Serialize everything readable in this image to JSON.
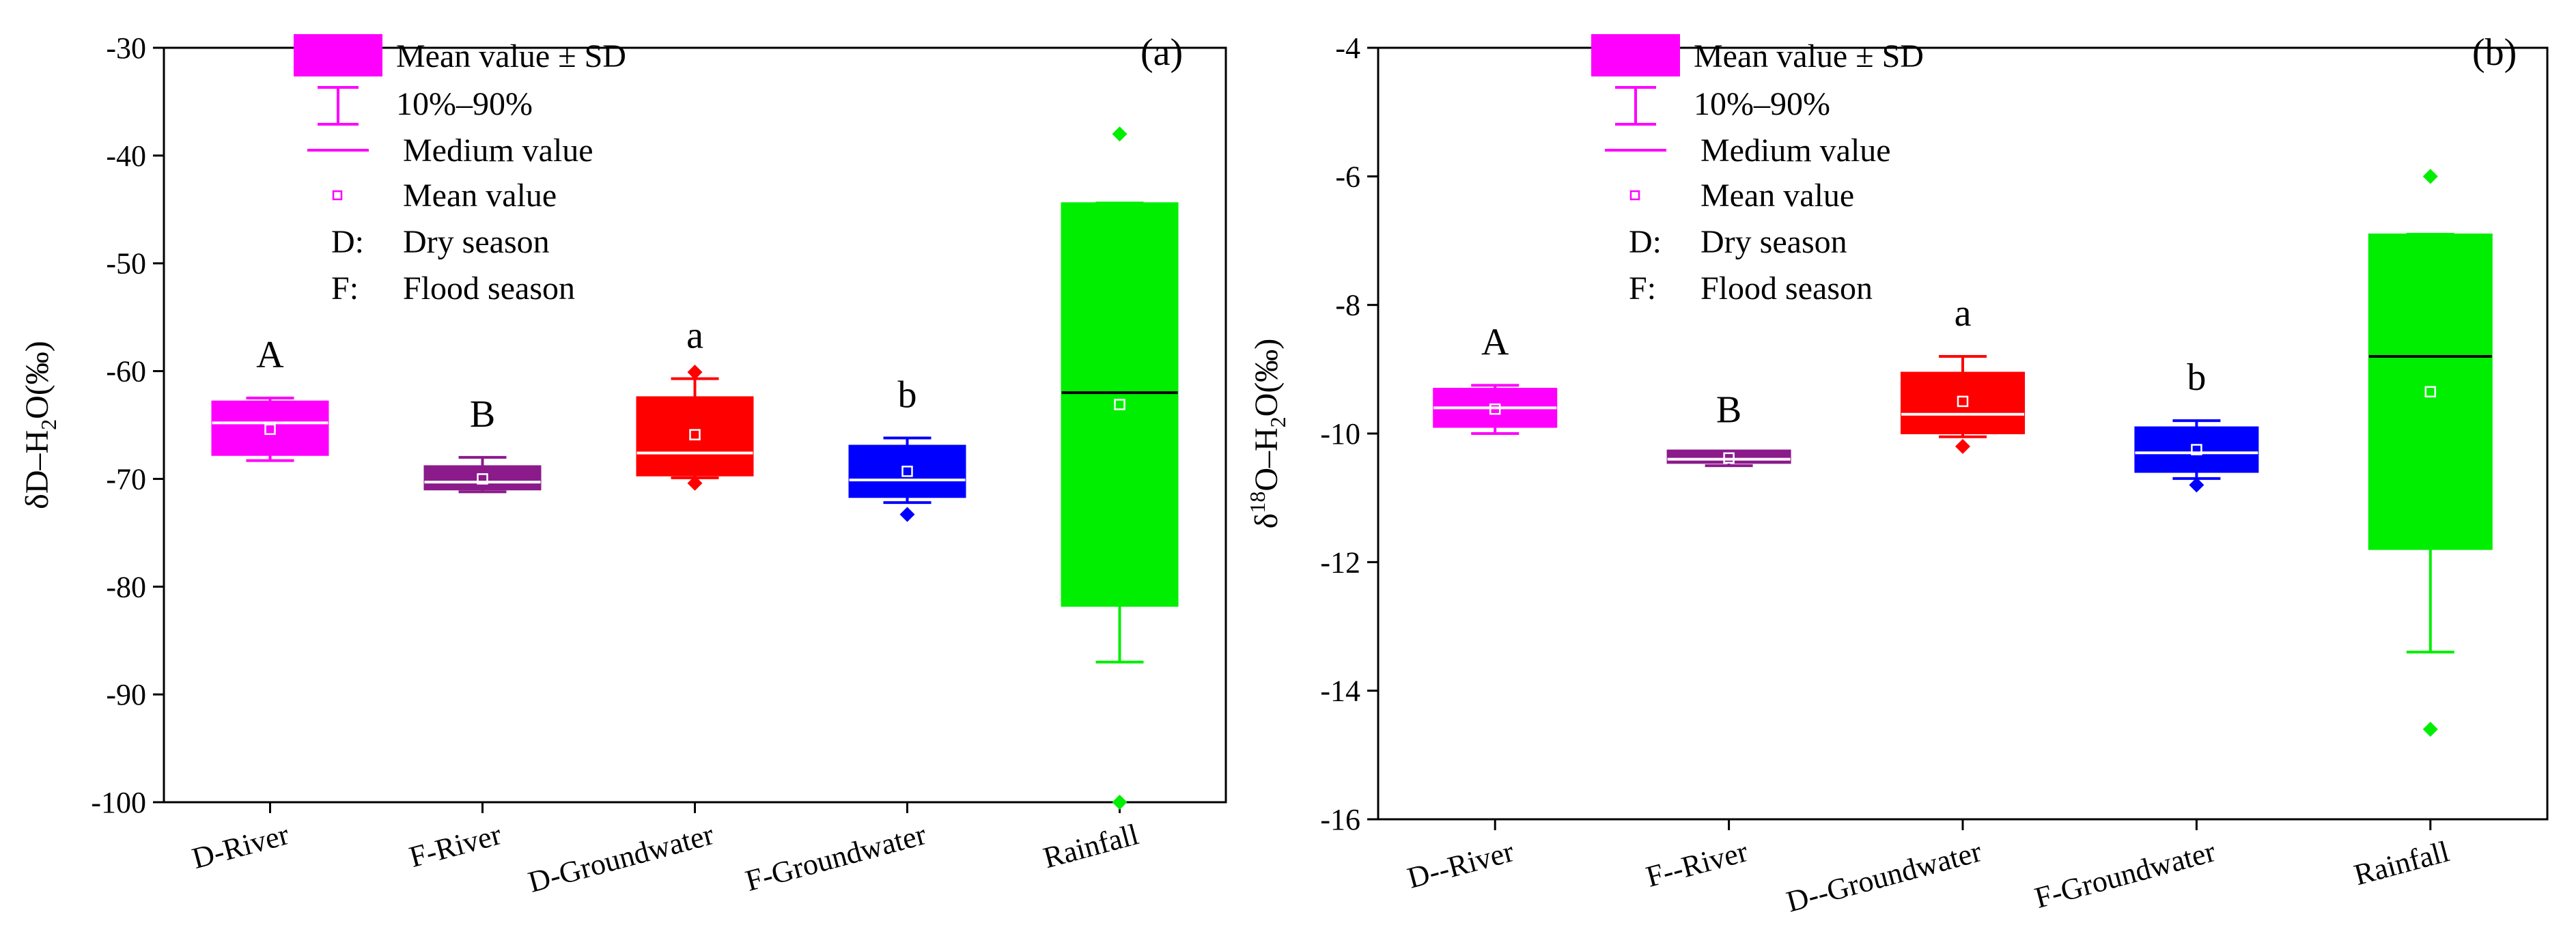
{
  "chart_data": [
    {
      "panel_label": "(a)",
      "type": "box",
      "ylabel": {
        "main": "δD–H",
        "sub": "2",
        "rest": "O(‰)"
      },
      "ylim": [
        -100,
        -30
      ],
      "yticks": [
        -30,
        -40,
        -50,
        -60,
        -70,
        -80,
        -90,
        -100
      ],
      "ytick_labels": [
        "-30",
        "-40",
        "-50",
        "-60",
        "-70",
        "-80",
        "-90",
        "-100"
      ],
      "categories": [
        "D-River",
        "F-River",
        "D-Groundwater",
        "F-Groundwater",
        "Rainfall"
      ],
      "boxes": [
        {
          "color": "#ff00ff",
          "box_low": -67.8,
          "box_high": -62.8,
          "median": -64.8,
          "mean": -65.4,
          "whisker_low": -68.3,
          "whisker_high": -62.5,
          "outliers": [],
          "sig": "A"
        },
        {
          "color": "#8b1a8b",
          "box_low": -71.0,
          "box_high": -68.8,
          "median": -70.3,
          "mean": -70.0,
          "whisker_low": -71.2,
          "whisker_high": -68.0,
          "outliers": [],
          "sig": "B"
        },
        {
          "color": "#ff0000",
          "box_low": -69.7,
          "box_high": -62.4,
          "median": -67.6,
          "mean": -65.9,
          "whisker_low": -69.9,
          "whisker_high": -60.7,
          "outliers": [
            -60.1,
            -70.4
          ],
          "sig": "a"
        },
        {
          "color": "#0000ff",
          "box_low": -71.7,
          "box_high": -66.9,
          "median": -70.1,
          "mean": -69.3,
          "whisker_low": -72.2,
          "whisker_high": -66.2,
          "outliers": [
            -73.3
          ],
          "sig": "b"
        },
        {
          "color": "#00ee00",
          "box_low": -81.8,
          "box_high": -44.4,
          "median": -62.0,
          "mean": -63.1,
          "whisker_low": -87.0,
          "whisker_high": -44.4,
          "outliers": [
            -38.0,
            -100.0
          ],
          "sig": ""
        }
      ],
      "legend": {
        "items": [
          "Mean value ± SD",
          "10%–90%",
          "Medium value",
          "Mean value",
          "Dry season",
          "Flood season"
        ],
        "keys": [
          "D:",
          "F:"
        ]
      }
    },
    {
      "panel_label": "(b)",
      "type": "box",
      "ylabel": {
        "main": "δ",
        "sup": "18",
        "rest": "O–H",
        "sub": "2",
        "rest2": "O(‰)"
      },
      "ylim": [
        -16,
        -4
      ],
      "yticks": [
        -4,
        -6,
        -8,
        -10,
        -12,
        -14,
        -16
      ],
      "ytick_labels": [
        "-4",
        "-6",
        "-8",
        "-10",
        "-12",
        "-14",
        "-16"
      ],
      "categories": [
        "D--River",
        "F--River",
        "D--Groundwater",
        "F-Groundwater",
        "Rainfall"
      ],
      "boxes": [
        {
          "color": "#ff00ff",
          "box_low": -9.9,
          "box_high": -9.3,
          "median": -9.6,
          "mean": -9.62,
          "whisker_low": -10.0,
          "whisker_high": -9.25,
          "outliers": [],
          "sig": "A"
        },
        {
          "color": "#8b1a8b",
          "box_low": -10.46,
          "box_high": -10.26,
          "median": -10.4,
          "mean": -10.38,
          "whisker_low": -10.5,
          "whisker_high": -10.3,
          "outliers": [],
          "sig": "B"
        },
        {
          "color": "#ff0000",
          "box_low": -10.0,
          "box_high": -9.05,
          "median": -9.7,
          "mean": -9.5,
          "whisker_low": -10.05,
          "whisker_high": -8.8,
          "outliers": [
            -10.2
          ],
          "sig": "a"
        },
        {
          "color": "#0000ff",
          "box_low": -10.6,
          "box_high": -9.9,
          "median": -10.3,
          "mean": -10.25,
          "whisker_low": -10.7,
          "whisker_high": -9.8,
          "outliers": [
            -10.8
          ],
          "sig": "b"
        },
        {
          "color": "#00ee00",
          "box_low": -11.8,
          "box_high": -6.9,
          "median": -8.8,
          "mean": -9.35,
          "whisker_low": -13.4,
          "whisker_high": -6.9,
          "outliers": [
            -6.0,
            -14.6
          ],
          "sig": ""
        }
      ],
      "legend": {
        "items": [
          "Mean value ± SD",
          "10%–90%",
          "Medium value",
          "Mean value",
          "Dry season",
          "Flood season"
        ],
        "keys": [
          "D:",
          "F:"
        ]
      }
    }
  ]
}
